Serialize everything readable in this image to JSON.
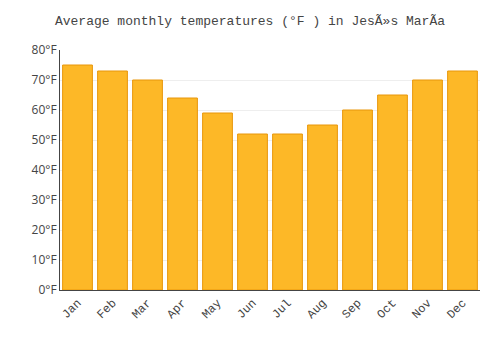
{
  "chart_data": {
    "type": "bar",
    "title": "Average monthly temperatures (°F ) in JesÃ»s MarÃ­a",
    "categories": [
      "Jan",
      "Feb",
      "Mar",
      "Apr",
      "May",
      "Jun",
      "Jul",
      "Aug",
      "Sep",
      "Oct",
      "Nov",
      "Dec"
    ],
    "values": [
      75,
      73,
      70,
      64,
      59,
      52,
      52,
      55,
      60,
      65,
      70,
      73
    ],
    "color": "#FDB827",
    "ylim": [
      0,
      80
    ],
    "yticks": [
      {
        "value": 0,
        "label": "0°F"
      },
      {
        "value": 10,
        "label": "10°F"
      },
      {
        "value": 20,
        "label": "20°F"
      },
      {
        "value": 30,
        "label": "30°F"
      },
      {
        "value": 40,
        "label": "40°F"
      },
      {
        "value": 50,
        "label": "50°F"
      },
      {
        "value": 60,
        "label": "60°F"
      },
      {
        "value": 70,
        "label": "70°F"
      },
      {
        "value": 80,
        "label": "80°F"
      }
    ],
    "grid": true
  }
}
